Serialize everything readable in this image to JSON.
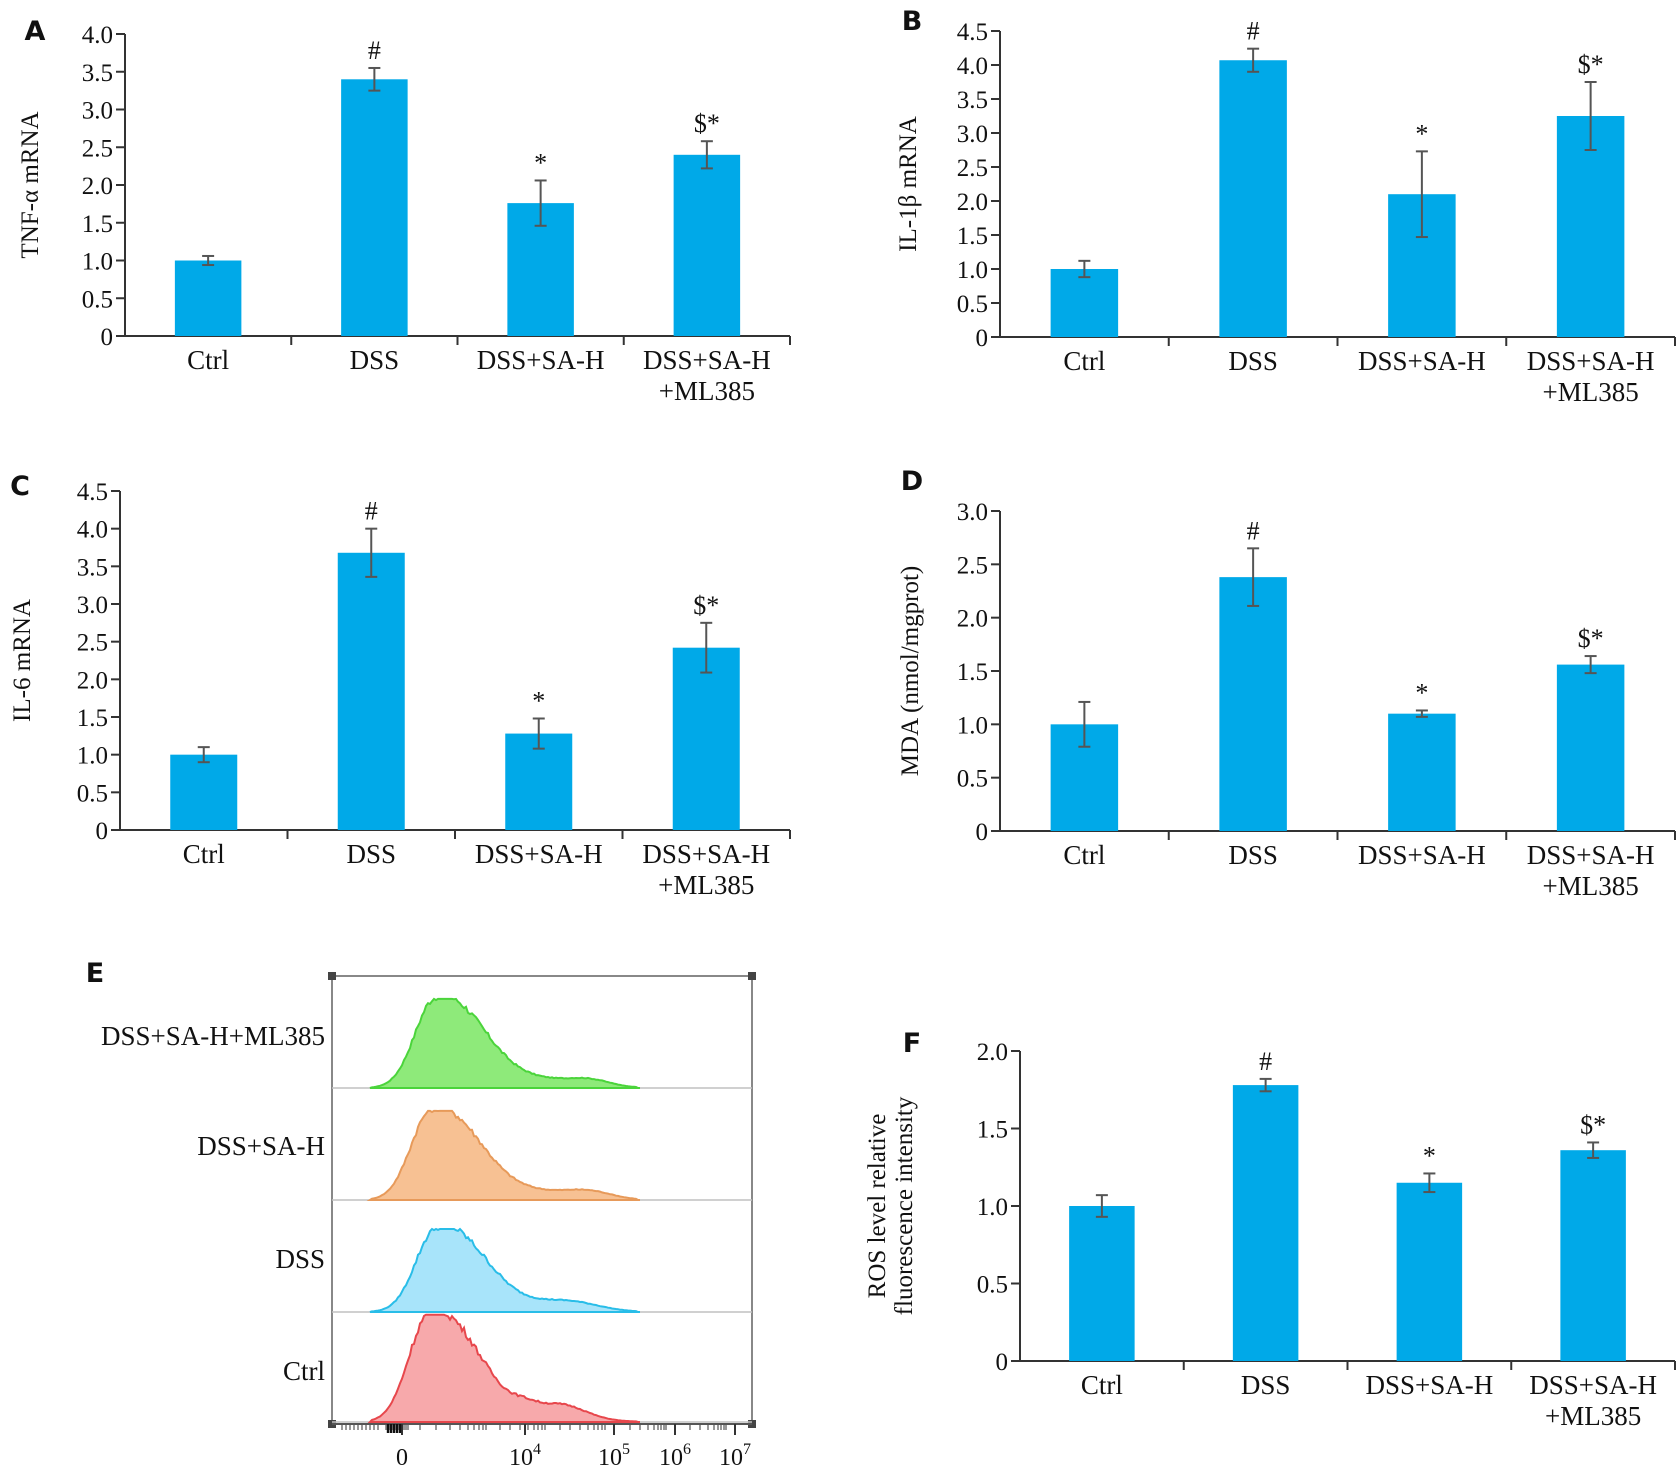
{
  "colors": {
    "bar": "#00a9e8",
    "axis": "#333333",
    "errorbar": "#555555",
    "hist_line": "#c0c0c0",
    "hist_fills": [
      "#8eea7a",
      "#f7c193",
      "#a8e4fa",
      "#f7a9ab"
    ],
    "hist_strokes": [
      "#4bd43b",
      "#e79a5a",
      "#29bde8",
      "#e7474c"
    ]
  },
  "chart_data": [
    {
      "panel": "A",
      "type": "bar",
      "categories": [
        "Ctrl",
        "DSS",
        "DSS+SA-H",
        "DSS+SA-H\n+ML385"
      ],
      "values": [
        1.0,
        3.4,
        1.76,
        2.4
      ],
      "errors": [
        0.06,
        0.15,
        0.3,
        0.18
      ],
      "annotations": [
        "",
        "#",
        "*",
        "$*"
      ],
      "ylabel": "TNF-α mRNA",
      "ylim": [
        0,
        4.0
      ],
      "yticks": [
        "0",
        "0.5",
        "1.0",
        "1.5",
        "2.0",
        "2.5",
        "3.0",
        "3.5",
        "4.0"
      ]
    },
    {
      "panel": "B",
      "type": "bar",
      "categories": [
        "Ctrl",
        "DSS",
        "DSS+SA-H",
        "DSS+SA-H\n+ML385"
      ],
      "values": [
        1.0,
        4.07,
        2.1,
        3.25
      ],
      "errors": [
        0.12,
        0.17,
        0.63,
        0.5
      ],
      "annotations": [
        "",
        "#",
        "*",
        "$*"
      ],
      "ylabel": "IL-1β mRNA",
      "ylim": [
        0,
        4.5
      ],
      "yticks": [
        "0",
        "0.5",
        "1.0",
        "1.5",
        "2.0",
        "2.5",
        "3.0",
        "3.5",
        "4.0",
        "4.5"
      ]
    },
    {
      "panel": "C",
      "type": "bar",
      "categories": [
        "Ctrl",
        "DSS",
        "DSS+SA-H",
        "DSS+SA-H\n+ML385"
      ],
      "values": [
        1.0,
        3.68,
        1.28,
        2.42
      ],
      "errors": [
        0.1,
        0.32,
        0.2,
        0.33
      ],
      "annotations": [
        "",
        "#",
        "*",
        "$*"
      ],
      "ylabel": "IL-6 mRNA",
      "ylim": [
        0,
        4.5
      ],
      "yticks": [
        "0",
        "0.5",
        "1.0",
        "1.5",
        "2.0",
        "2.5",
        "3.0",
        "3.5",
        "4.0",
        "4.5"
      ]
    },
    {
      "panel": "D",
      "type": "bar",
      "categories": [
        "Ctrl",
        "DSS",
        "DSS+SA-H",
        "DSS+SA-H\n+ML385"
      ],
      "values": [
        1.0,
        2.38,
        1.1,
        1.56
      ],
      "errors": [
        0.21,
        0.27,
        0.03,
        0.08
      ],
      "annotations": [
        "",
        "#",
        "*",
        "$*"
      ],
      "ylabel": "MDA (nmol/mgprot)",
      "ylim": [
        0,
        3.0
      ],
      "yticks": [
        "0",
        "0.5",
        "1.0",
        "1.5",
        "2.0",
        "2.5",
        "3.0"
      ]
    },
    {
      "panel": "E",
      "type": "histogram",
      "series": [
        {
          "name": "DSS+SA-H+ML385"
        },
        {
          "name": "DSS+SA-H"
        },
        {
          "name": "DSS"
        },
        {
          "name": "Ctrl"
        }
      ],
      "xticks": [
        {
          "base": "0",
          "exp": ""
        },
        {
          "base": "10",
          "exp": "4"
        },
        {
          "base": "10",
          "exp": "5"
        },
        {
          "base": "10",
          "exp": "6"
        },
        {
          "base": "10",
          "exp": "7"
        }
      ]
    },
    {
      "panel": "F",
      "type": "bar",
      "categories": [
        "Ctrl",
        "DSS",
        "DSS+SA-H",
        "DSS+SA-H\n+ML385"
      ],
      "values": [
        1.0,
        1.78,
        1.15,
        1.36
      ],
      "errors": [
        0.07,
        0.04,
        0.06,
        0.05
      ],
      "annotations": [
        "",
        "#",
        "*",
        "$*"
      ],
      "ylabel": [
        "ROS level relative",
        "fluorescence intensity"
      ],
      "ylim": [
        0,
        2.0
      ],
      "yticks": [
        "0",
        "0.5",
        "1.0",
        "1.5",
        "2.0"
      ]
    }
  ]
}
